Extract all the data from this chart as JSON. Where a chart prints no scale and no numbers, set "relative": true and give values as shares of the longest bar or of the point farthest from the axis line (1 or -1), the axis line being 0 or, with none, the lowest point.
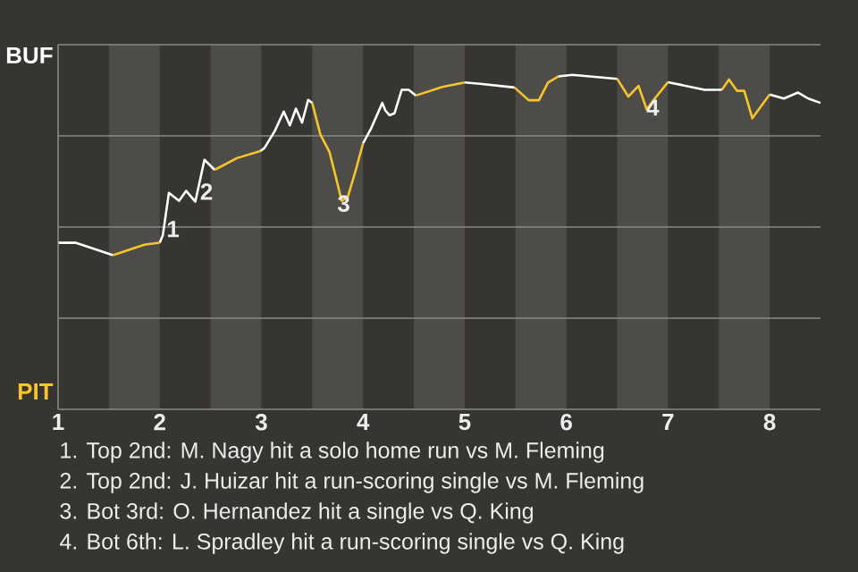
{
  "chart_data": {
    "type": "line",
    "relative": true,
    "xlim": [
      1,
      8.5
    ],
    "xticks": [
      1,
      2,
      3,
      4,
      5,
      6,
      7,
      8
    ],
    "grid": "y",
    "marker": "none",
    "line_style": "solid",
    "x": [
      1.0,
      1.17,
      1.54,
      1.85,
      2.0,
      2.03,
      2.09,
      2.19,
      2.26,
      2.35,
      2.44,
      2.54,
      2.76,
      2.99,
      3.03,
      3.13,
      3.22,
      3.28,
      3.34,
      3.4,
      3.46,
      3.5,
      3.58,
      3.67,
      3.73,
      3.79,
      3.85,
      3.92,
      4.0,
      4.08,
      4.19,
      4.22,
      4.26,
      4.31,
      4.38,
      4.45,
      4.52,
      4.78,
      5.0,
      5.15,
      5.49,
      5.63,
      5.73,
      5.82,
      5.92,
      6.06,
      6.5,
      6.61,
      6.71,
      6.79,
      6.87,
      7.0,
      7.36,
      7.53,
      7.6,
      7.68,
      7.75,
      7.83,
      8.0,
      8.14,
      8.28,
      8.38,
      8.5
    ],
    "series": [
      {
        "color": "#ffffff",
        "values": [
          0.498,
          0.498,
          0.461,
          null,
          0.498,
          0.52,
          0.647,
          0.623,
          0.653,
          0.621,
          0.746,
          0.716,
          null,
          0.772,
          0.781,
          0.831,
          0.89,
          0.849,
          0.899,
          0.857,
          0.925,
          0.916,
          null,
          null,
          null,
          null,
          null,
          null,
          0.795,
          0.84,
          0.916,
          0.893,
          0.879,
          0.885,
          0.955,
          0.955,
          0.938,
          null,
          0.977,
          0.973,
          0.962,
          null,
          null,
          null,
          0.995,
          1,
          0.988,
          null,
          null,
          null,
          null,
          0.978,
          0.955,
          0.955,
          null,
          null,
          null,
          null,
          0.941,
          0.929,
          0.947,
          0.929,
          0.916
        ]
      },
      {
        "color": "#f7c52b",
        "values": [
          null,
          null,
          0.461,
          0.492,
          0.498,
          null,
          null,
          null,
          null,
          null,
          null,
          0.716,
          0.751,
          0.772,
          null,
          null,
          null,
          null,
          null,
          null,
          null,
          0.916,
          0.822,
          0.769,
          0.697,
          0.623,
          0.635,
          0.706,
          0.795,
          null,
          null,
          null,
          null,
          null,
          null,
          null,
          0.938,
          0.964,
          0.977,
          null,
          0.962,
          0.924,
          0.924,
          0.977,
          0.995,
          null,
          0.988,
          0.935,
          0.967,
          0.897,
          0.929,
          0.978,
          null,
          0.955,
          0.986,
          0.952,
          0.952,
          0.87,
          0.941,
          null,
          null,
          null,
          null
        ]
      }
    ],
    "bands": [
      {
        "axis": "x",
        "from": 1.5,
        "to": 2,
        "color": "#4e4c49"
      },
      {
        "axis": "x",
        "from": 2.5,
        "to": 3,
        "color": "#4e4c49"
      },
      {
        "axis": "x",
        "from": 3.5,
        "to": 4,
        "color": "#4e4c49"
      },
      {
        "axis": "x",
        "from": 4.5,
        "to": 5,
        "color": "#4e4c49"
      },
      {
        "axis": "x",
        "from": 5.5,
        "to": 6,
        "color": "#4e4c49"
      },
      {
        "axis": "x",
        "from": 6.5,
        "to": 7,
        "color": "#4e4c49"
      },
      {
        "axis": "x",
        "from": 7.5,
        "to": 8,
        "color": "#4e4c49"
      }
    ],
    "annotations": [
      {
        "text": "1",
        "x": 2.13,
        "y": 0.539
      },
      {
        "text": "2",
        "x": 2.46,
        "y": 0.651
      },
      {
        "text": "3",
        "x": 3.81,
        "y": 0.615
      },
      {
        "text": "4",
        "x": 6.85,
        "y": 0.902
      },
      "BUF",
      "PIT",
      "1. Top 2nd: M. Nagy hit a solo home run vs M. Fleming",
      "2. Top 2nd: J. Huizar hit a run-scoring single vs M. Fleming",
      "3. Bot 3rd: O. Hernandez hit a single vs Q. King",
      "4. Bot 6th: L. Spradley hit a run-scoring single vs Q. King"
    ]
  }
}
